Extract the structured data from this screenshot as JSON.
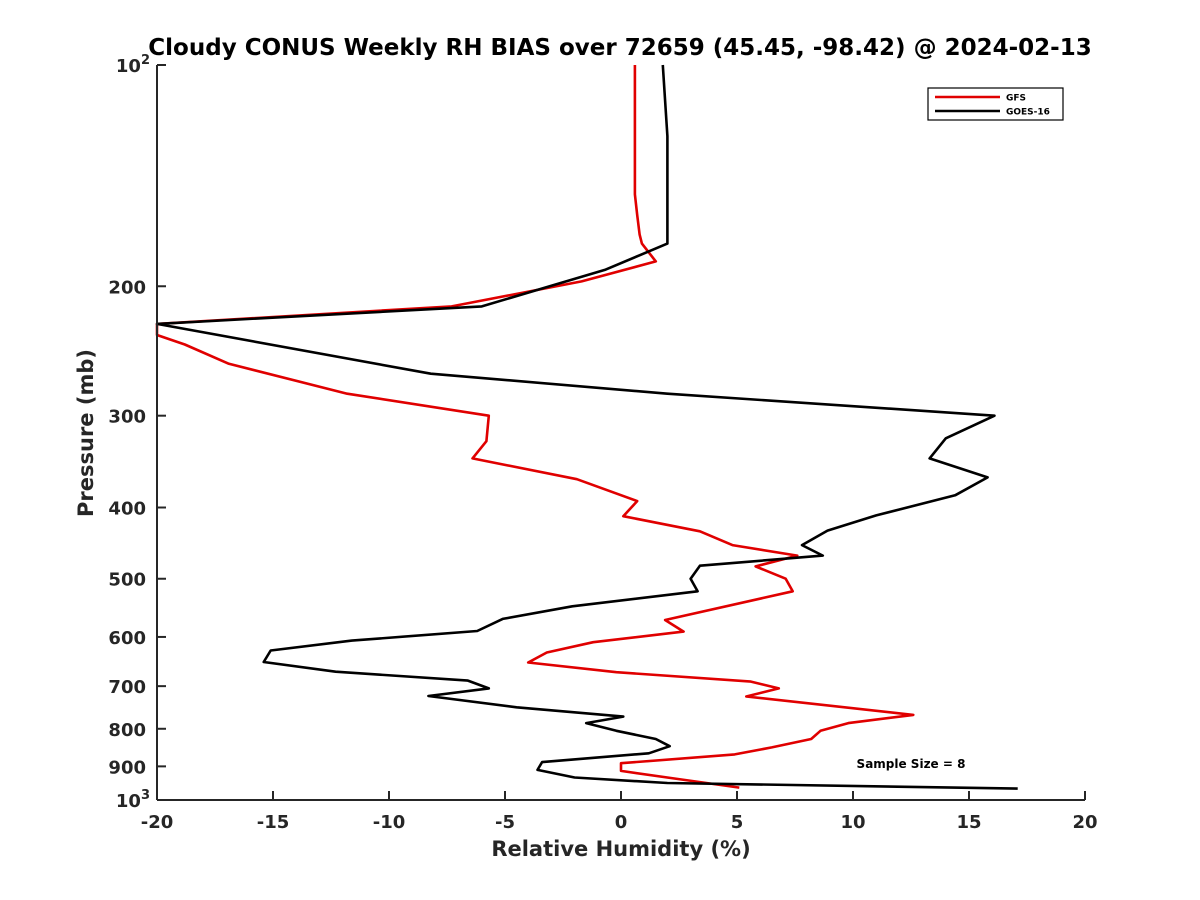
{
  "chart_data": {
    "type": "line",
    "title": "Cloudy CONUS Weekly RH BIAS over 72659 (45.45, -98.42) @ 2024-02-13",
    "xlabel": "Relative Humidity (%)",
    "ylabel": "Pressure (mb)",
    "xlim": [
      -20,
      20
    ],
    "ylim": [
      100,
      1000
    ],
    "y_scale": "log",
    "y_reversed": true,
    "x_ticks": [
      "-20",
      "-15",
      "-10",
      "-5",
      "0",
      "5",
      "10",
      "15",
      "20"
    ],
    "y_ticks": [
      {
        "value": 100,
        "base": "10",
        "exp": "2"
      },
      {
        "value": 200,
        "label": "200"
      },
      {
        "value": 300,
        "label": "300"
      },
      {
        "value": 400,
        "label": "400"
      },
      {
        "value": 500,
        "label": "500"
      },
      {
        "value": 600,
        "label": "600"
      },
      {
        "value": 700,
        "label": "700"
      },
      {
        "value": 800,
        "label": "800"
      },
      {
        "value": 900,
        "label": "900"
      },
      {
        "value": 1000,
        "base": "10",
        "exp": "3"
      }
    ],
    "grid": false,
    "legend_position": "top-right",
    "series": [
      {
        "name": "GFS",
        "color": "#e00000",
        "points": [
          {
            "x": 0.6,
            "y": 100
          },
          {
            "x": 0.6,
            "y": 125
          },
          {
            "x": 0.6,
            "y": 150
          },
          {
            "x": 0.7,
            "y": 160
          },
          {
            "x": 0.8,
            "y": 170
          },
          {
            "x": 0.9,
            "y": 175
          },
          {
            "x": 1.5,
            "y": 185
          },
          {
            "x": -1.7,
            "y": 197
          },
          {
            "x": -7.3,
            "y": 213
          },
          {
            "x": -20.0,
            "y": 225
          },
          {
            "x": -20.0,
            "y": 233
          },
          {
            "x": -18.8,
            "y": 240
          },
          {
            "x": -16.9,
            "y": 255
          },
          {
            "x": -11.8,
            "y": 280
          },
          {
            "x": -5.7,
            "y": 300
          },
          {
            "x": -5.8,
            "y": 325
          },
          {
            "x": -6.4,
            "y": 343
          },
          {
            "x": -1.9,
            "y": 366
          },
          {
            "x": 0.7,
            "y": 392
          },
          {
            "x": 0.1,
            "y": 411
          },
          {
            "x": 3.4,
            "y": 431
          },
          {
            "x": 4.8,
            "y": 450
          },
          {
            "x": 7.6,
            "y": 465
          },
          {
            "x": 5.8,
            "y": 481
          },
          {
            "x": 7.1,
            "y": 500
          },
          {
            "x": 7.4,
            "y": 520
          },
          {
            "x": 1.9,
            "y": 569
          },
          {
            "x": 2.7,
            "y": 590
          },
          {
            "x": -1.2,
            "y": 610
          },
          {
            "x": -3.2,
            "y": 630
          },
          {
            "x": -4.0,
            "y": 650
          },
          {
            "x": -0.2,
            "y": 670
          },
          {
            "x": 5.6,
            "y": 690
          },
          {
            "x": 6.8,
            "y": 705
          },
          {
            "x": 5.4,
            "y": 723
          },
          {
            "x": 12.6,
            "y": 766
          },
          {
            "x": 9.8,
            "y": 786
          },
          {
            "x": 8.6,
            "y": 805
          },
          {
            "x": 8.2,
            "y": 826
          },
          {
            "x": 6.5,
            "y": 848
          },
          {
            "x": 4.9,
            "y": 867
          },
          {
            "x": 0.0,
            "y": 891
          },
          {
            "x": 0.0,
            "y": 913
          },
          {
            "x": 2.3,
            "y": 935
          },
          {
            "x": 5.1,
            "y": 962
          }
        ]
      },
      {
        "name": "GOES-16",
        "color": "#000000",
        "points": [
          {
            "x": 1.8,
            "y": 100
          },
          {
            "x": 2.0,
            "y": 125
          },
          {
            "x": 2.0,
            "y": 150
          },
          {
            "x": 2.0,
            "y": 175
          },
          {
            "x": -0.7,
            "y": 190
          },
          {
            "x": -6.0,
            "y": 213
          },
          {
            "x": -20.0,
            "y": 225
          },
          {
            "x": -8.2,
            "y": 263
          },
          {
            "x": 2.0,
            "y": 280
          },
          {
            "x": 16.1,
            "y": 300
          },
          {
            "x": 14.0,
            "y": 322
          },
          {
            "x": 13.3,
            "y": 343
          },
          {
            "x": 15.8,
            "y": 364
          },
          {
            "x": 14.4,
            "y": 385
          },
          {
            "x": 11.0,
            "y": 410
          },
          {
            "x": 8.9,
            "y": 430
          },
          {
            "x": 7.8,
            "y": 450
          },
          {
            "x": 8.7,
            "y": 465
          },
          {
            "x": 3.4,
            "y": 480
          },
          {
            "x": 3.0,
            "y": 500
          },
          {
            "x": 3.3,
            "y": 520
          },
          {
            "x": -2.1,
            "y": 545
          },
          {
            "x": -5.1,
            "y": 567
          },
          {
            "x": -6.2,
            "y": 589
          },
          {
            "x": -11.6,
            "y": 607
          },
          {
            "x": -15.1,
            "y": 626
          },
          {
            "x": -15.4,
            "y": 649
          },
          {
            "x": -12.3,
            "y": 669
          },
          {
            "x": -6.6,
            "y": 688
          },
          {
            "x": -5.7,
            "y": 705
          },
          {
            "x": -8.3,
            "y": 722
          },
          {
            "x": -4.5,
            "y": 748
          },
          {
            "x": 0.1,
            "y": 770
          },
          {
            "x": -1.5,
            "y": 786
          },
          {
            "x": -0.2,
            "y": 805
          },
          {
            "x": 1.5,
            "y": 826
          },
          {
            "x": 2.1,
            "y": 845
          },
          {
            "x": 1.2,
            "y": 864
          },
          {
            "x": -3.4,
            "y": 888
          },
          {
            "x": -3.6,
            "y": 910
          },
          {
            "x": -2.0,
            "y": 932
          },
          {
            "x": 2.0,
            "y": 948
          },
          {
            "x": 17.1,
            "y": 965
          }
        ]
      }
    ],
    "annotations": [
      {
        "text": "Sample Size = 8",
        "x": 12.5,
        "y": 905
      }
    ]
  }
}
